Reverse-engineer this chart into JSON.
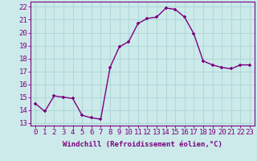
{
  "x": [
    0,
    1,
    2,
    3,
    4,
    5,
    6,
    7,
    8,
    9,
    10,
    11,
    12,
    13,
    14,
    15,
    16,
    17,
    18,
    19,
    20,
    21,
    22,
    23
  ],
  "y": [
    14.5,
    13.9,
    15.1,
    15.0,
    14.9,
    13.6,
    13.4,
    13.3,
    17.3,
    18.9,
    19.3,
    20.7,
    21.1,
    21.2,
    21.9,
    21.8,
    21.2,
    19.9,
    17.8,
    17.5,
    17.3,
    17.2,
    17.5,
    17.5
  ],
  "line_color": "#7b0080",
  "marker": "+",
  "bg_color": "#cceaea",
  "grid_color": "#b0d8d8",
  "xlabel": "Windchill (Refroidissement éolien,°C)",
  "yticks": [
    13,
    14,
    15,
    16,
    17,
    18,
    19,
    20,
    21,
    22
  ],
  "ylim": [
    12.8,
    22.4
  ],
  "xlim": [
    -0.5,
    23.5
  ],
  "xticks": [
    0,
    1,
    2,
    3,
    4,
    5,
    6,
    7,
    8,
    9,
    10,
    11,
    12,
    13,
    14,
    15,
    16,
    17,
    18,
    19,
    20,
    21,
    22,
    23
  ],
  "xlabel_fontsize": 6.5,
  "tick_fontsize": 6.5,
  "line_width": 1.0,
  "marker_size": 3.5
}
